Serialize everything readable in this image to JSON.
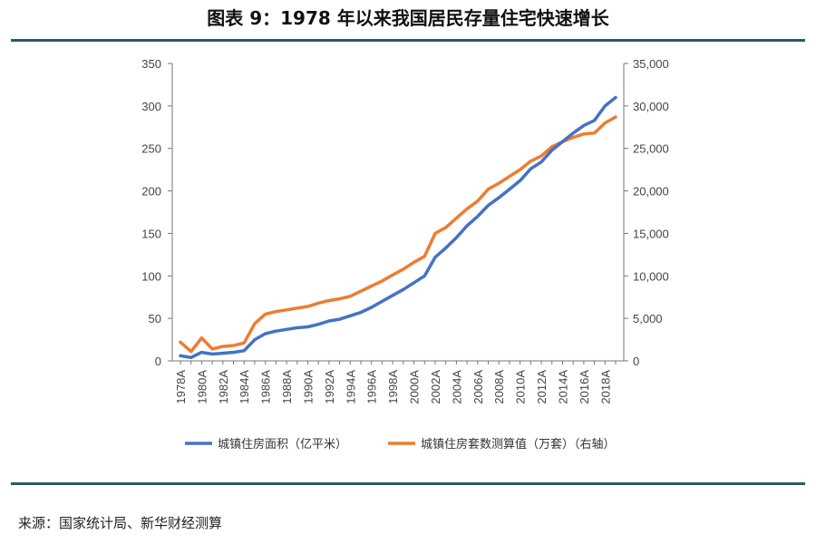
{
  "title": "图表 9：1978 年以来我国居民存量住宅快速增长",
  "source": "来源：国家统计局、新华财经测算",
  "colors": {
    "series1": "#4472c4",
    "series2": "#ed7d31",
    "rule": "#2e5a67"
  },
  "chart_data": {
    "type": "line",
    "title": "",
    "x": [
      "1978A",
      "1979A",
      "1980A",
      "1981A",
      "1982A",
      "1983A",
      "1984A",
      "1985A",
      "1986A",
      "1987A",
      "1988A",
      "1989A",
      "1990A",
      "1991A",
      "1992A",
      "1993A",
      "1994A",
      "1995A",
      "1996A",
      "1997A",
      "1998A",
      "1999A",
      "2000A",
      "2001A",
      "2002A",
      "2003A",
      "2004A",
      "2005A",
      "2006A",
      "2007A",
      "2008A",
      "2009A",
      "2010A",
      "2011A",
      "2012A",
      "2013A",
      "2014A",
      "2015A",
      "2016A",
      "2017A",
      "2018A",
      "2019A"
    ],
    "x_tick_labels": [
      "1978A",
      "1980A",
      "1982A",
      "1984A",
      "1986A",
      "1988A",
      "1990A",
      "1992A",
      "1994A",
      "1996A",
      "1998A",
      "2000A",
      "2002A",
      "2004A",
      "2006A",
      "2008A",
      "2010A",
      "2012A",
      "2014A",
      "2016A",
      "2018A"
    ],
    "left_axis": {
      "ylim": [
        0,
        350
      ],
      "ticks": [
        "0",
        "50",
        "100",
        "150",
        "200",
        "250",
        "300",
        "350"
      ]
    },
    "right_axis": {
      "ylim": [
        0,
        35000
      ],
      "ticks": [
        "0",
        "5,000",
        "10,000",
        "15,000",
        "20,000",
        "25,000",
        "30,000",
        "35,000"
      ]
    },
    "series": [
      {
        "name": "城镇住房面积（亿平米）",
        "axis": "left",
        "values": [
          6,
          4,
          10,
          8,
          9,
          10,
          12,
          25,
          32,
          35,
          37,
          39,
          40,
          43,
          47,
          49,
          53,
          57,
          63,
          70,
          77,
          84,
          92,
          100,
          122,
          133,
          145,
          159,
          170,
          183,
          192,
          202,
          212,
          226,
          234,
          248,
          258,
          268,
          277,
          283,
          300,
          310
        ]
      },
      {
        "name": "城镇住房套数测算值（万套）（右轴）",
        "axis": "right",
        "values": [
          2200,
          1100,
          2700,
          1400,
          1700,
          1800,
          2100,
          4400,
          5500,
          5800,
          6000,
          6200,
          6400,
          6800,
          7100,
          7300,
          7600,
          8200,
          8800,
          9400,
          10100,
          10800,
          11600,
          12300,
          15000,
          15700,
          16800,
          17900,
          18800,
          20200,
          20900,
          21700,
          22500,
          23500,
          24100,
          25200,
          25800,
          26300,
          26700,
          26800,
          28000,
          28700
        ]
      }
    ],
    "grid": false,
    "legend_position": "bottom"
  }
}
